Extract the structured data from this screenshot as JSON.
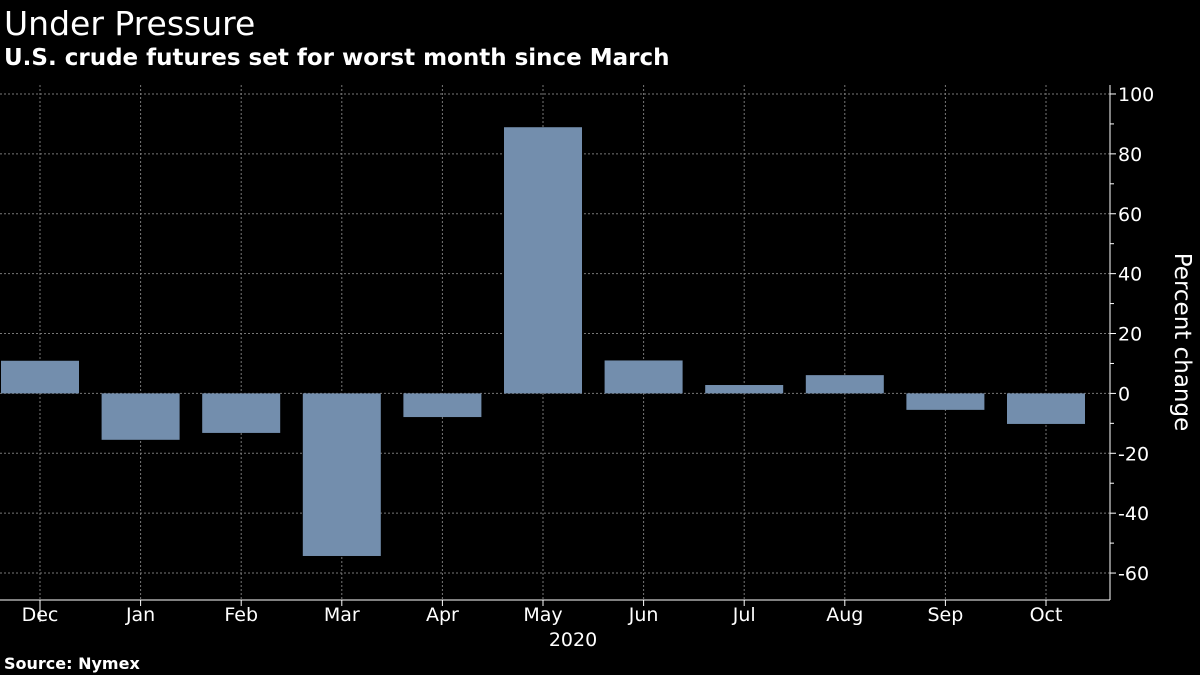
{
  "title": "Under Pressure",
  "subtitle": "U.S. crude futures set for worst month since March",
  "source": "Source: Nymex",
  "chart_data": {
    "type": "bar",
    "categories": [
      "Dec",
      "Jan",
      "Feb",
      "Mar",
      "Apr",
      "May",
      "Jun",
      "Jul",
      "Aug",
      "Sep",
      "Oct"
    ],
    "values": [
      10.9,
      -15.5,
      -13.2,
      -54.3,
      -7.9,
      88.9,
      11.0,
      2.8,
      6.1,
      -5.5,
      -10.2
    ],
    "year_label": "2020",
    "ylabel": "Percent change",
    "yticks": [
      100,
      80,
      60,
      40,
      20,
      0,
      -20,
      -40,
      -60
    ],
    "ylim": [
      -69,
      103
    ],
    "grid": true,
    "y_axis_side": "right",
    "bar_color": "#738ead"
  }
}
